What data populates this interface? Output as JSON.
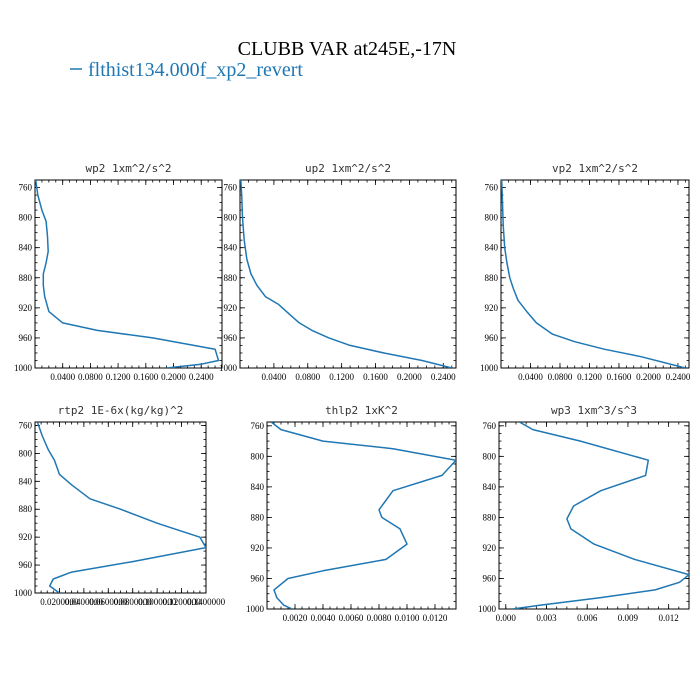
{
  "title": "CLUBB VAR at245E,-17N",
  "legend": {
    "label": "flthist134.000f_xp2_revert",
    "color": "#1f77b4"
  },
  "chart_data": [
    {
      "type": "line",
      "title": "wp2  1xm^2/s^2",
      "xlim": [
        0.0,
        0.27
      ],
      "ylim": [
        1000,
        750
      ],
      "xticks": [
        0.04,
        0.08,
        0.12,
        0.16,
        0.2,
        0.24
      ],
      "xtick_labels": [
        "0.0400",
        "0.0800",
        "0.1200",
        "0.1600",
        "0.2000",
        "0.2400"
      ],
      "yticks": [
        760,
        800,
        840,
        880,
        920,
        960,
        1000
      ],
      "ytick_labels": [
        "760",
        "800",
        "840",
        "880",
        "920",
        "960",
        "1000"
      ],
      "series": [
        {
          "color": "#1f77b4",
          "x": [
            0.001,
            0.004,
            0.01,
            0.016,
            0.018,
            0.019,
            0.016,
            0.012,
            0.012,
            0.014,
            0.02,
            0.04,
            0.09,
            0.17,
            0.26,
            0.265,
            0.24,
            0.19
          ],
          "y": [
            750,
            770,
            790,
            805,
            825,
            845,
            860,
            875,
            890,
            905,
            925,
            940,
            950,
            960,
            975,
            990,
            995,
            1000
          ]
        }
      ]
    },
    {
      "type": "line",
      "title": "up2  1xm^2/s^2",
      "xlim": [
        0.0,
        0.255
      ],
      "ylim": [
        1000,
        750
      ],
      "xticks": [
        0.04,
        0.08,
        0.12,
        0.16,
        0.2,
        0.24
      ],
      "xtick_labels": [
        "0.0400",
        "0.0800",
        "0.1200",
        "0.1600",
        "0.2000",
        "0.2400"
      ],
      "yticks": [
        760,
        800,
        840,
        880,
        920,
        960,
        1000
      ],
      "ytick_labels": [
        "760",
        "800",
        "840",
        "880",
        "920",
        "960",
        "1000"
      ],
      "series": [
        {
          "color": "#1f77b4",
          "x": [
            0.001,
            0.002,
            0.003,
            0.005,
            0.008,
            0.013,
            0.02,
            0.03,
            0.045,
            0.06,
            0.07,
            0.085,
            0.105,
            0.13,
            0.17,
            0.215,
            0.25
          ],
          "y": [
            750,
            770,
            800,
            830,
            855,
            875,
            890,
            905,
            915,
            930,
            940,
            950,
            960,
            970,
            980,
            990,
            1000
          ]
        }
      ]
    },
    {
      "type": "line",
      "title": "vp2  1xm^2/s^2",
      "xlim": [
        0.0,
        0.255
      ],
      "ylim": [
        1000,
        750
      ],
      "xticks": [
        0.04,
        0.08,
        0.12,
        0.16,
        0.2,
        0.24
      ],
      "xtick_labels": [
        "0.0400",
        "0.0800",
        "0.1200",
        "0.1600",
        "0.2000",
        "0.2400"
      ],
      "yticks": [
        760,
        800,
        840,
        880,
        920,
        960,
        1000
      ],
      "ytick_labels": [
        "760",
        "800",
        "840",
        "880",
        "920",
        "960",
        "1000"
      ],
      "series": [
        {
          "color": "#1f77b4",
          "x": [
            0.001,
            0.002,
            0.003,
            0.005,
            0.008,
            0.012,
            0.017,
            0.023,
            0.035,
            0.048,
            0.07,
            0.1,
            0.14,
            0.19,
            0.25
          ],
          "y": [
            750,
            780,
            810,
            840,
            860,
            880,
            895,
            910,
            925,
            940,
            955,
            965,
            975,
            985,
            1000
          ]
        }
      ]
    },
    {
      "type": "line",
      "title": "rtp2  1E-6x(kg/kg)^2",
      "xlim": [
        0.0,
        0.14
      ],
      "ylim": [
        1000,
        755
      ],
      "xticks": [
        0.02,
        0.04,
        0.06,
        0.08,
        0.1,
        0.12,
        0.14
      ],
      "xtick_labels": [
        "0.0200000",
        "0.0400000",
        "0.0600000",
        "0.0800000",
        "0.1000000",
        "0.1200000",
        "0.1400000"
      ],
      "yticks": [
        760,
        800,
        840,
        880,
        920,
        960,
        1000
      ],
      "ytick_labels": [
        "760",
        "800",
        "840",
        "880",
        "920",
        "960",
        "1000"
      ],
      "series": [
        {
          "color": "#1f77b4",
          "x": [
            0.002,
            0.006,
            0.011,
            0.016,
            0.02,
            0.03,
            0.045,
            0.07,
            0.1,
            0.135,
            0.14,
            0.08,
            0.03,
            0.015,
            0.012,
            0.02
          ],
          "y": [
            755,
            775,
            795,
            810,
            830,
            845,
            865,
            880,
            900,
            920,
            935,
            955,
            970,
            980,
            990,
            1000
          ]
        }
      ]
    },
    {
      "type": "line",
      "title": "thlp2  1xK^2",
      "xlim": [
        0.0,
        0.0135
      ],
      "ylim": [
        1000,
        755
      ],
      "xticks": [
        0.002,
        0.004,
        0.006,
        0.008,
        0.01,
        0.012
      ],
      "xtick_labels": [
        "0.0020",
        "0.0040",
        "0.0060",
        "0.0080",
        "0.0100",
        "0.0120"
      ],
      "yticks": [
        760,
        800,
        840,
        880,
        920,
        960,
        1000
      ],
      "ytick_labels": [
        "760",
        "800",
        "840",
        "880",
        "920",
        "960",
        "1000"
      ],
      "series": [
        {
          "color": "#1f77b4",
          "x": [
            0.0003,
            0.001,
            0.004,
            0.009,
            0.0135,
            0.0125,
            0.009,
            0.008,
            0.0082,
            0.0095,
            0.01,
            0.0085,
            0.004,
            0.0015,
            0.0005,
            0.0007,
            0.0012,
            0.0018
          ],
          "y": [
            755,
            765,
            780,
            790,
            805,
            825,
            845,
            870,
            880,
            895,
            915,
            935,
            950,
            960,
            975,
            985,
            995,
            1000
          ]
        }
      ]
    },
    {
      "type": "line",
      "title": "wp3  1xm^3/s^3",
      "xlim": [
        -0.0005,
        0.0135
      ],
      "ylim": [
        1000,
        755
      ],
      "xticks": [
        0.0,
        0.003,
        0.006,
        0.009,
        0.012
      ],
      "xtick_labels": [
        "0.000",
        "0.003",
        "0.006",
        "0.009",
        "0.012"
      ],
      "yticks": [
        760,
        800,
        840,
        880,
        920,
        960,
        1000
      ],
      "ytick_labels": [
        "760",
        "800",
        "840",
        "880",
        "920",
        "960",
        "1000"
      ],
      "series": [
        {
          "color": "#1f77b4",
          "x": [
            0.001,
            0.002,
            0.0055,
            0.0105,
            0.0103,
            0.007,
            0.005,
            0.0045,
            0.0048,
            0.0065,
            0.0095,
            0.0135,
            0.0128,
            0.011,
            0.007,
            0.0025,
            0.0005
          ],
          "y": [
            755,
            765,
            780,
            805,
            825,
            845,
            865,
            882,
            895,
            915,
            935,
            955,
            965,
            975,
            985,
            995,
            1000
          ]
        }
      ]
    }
  ]
}
